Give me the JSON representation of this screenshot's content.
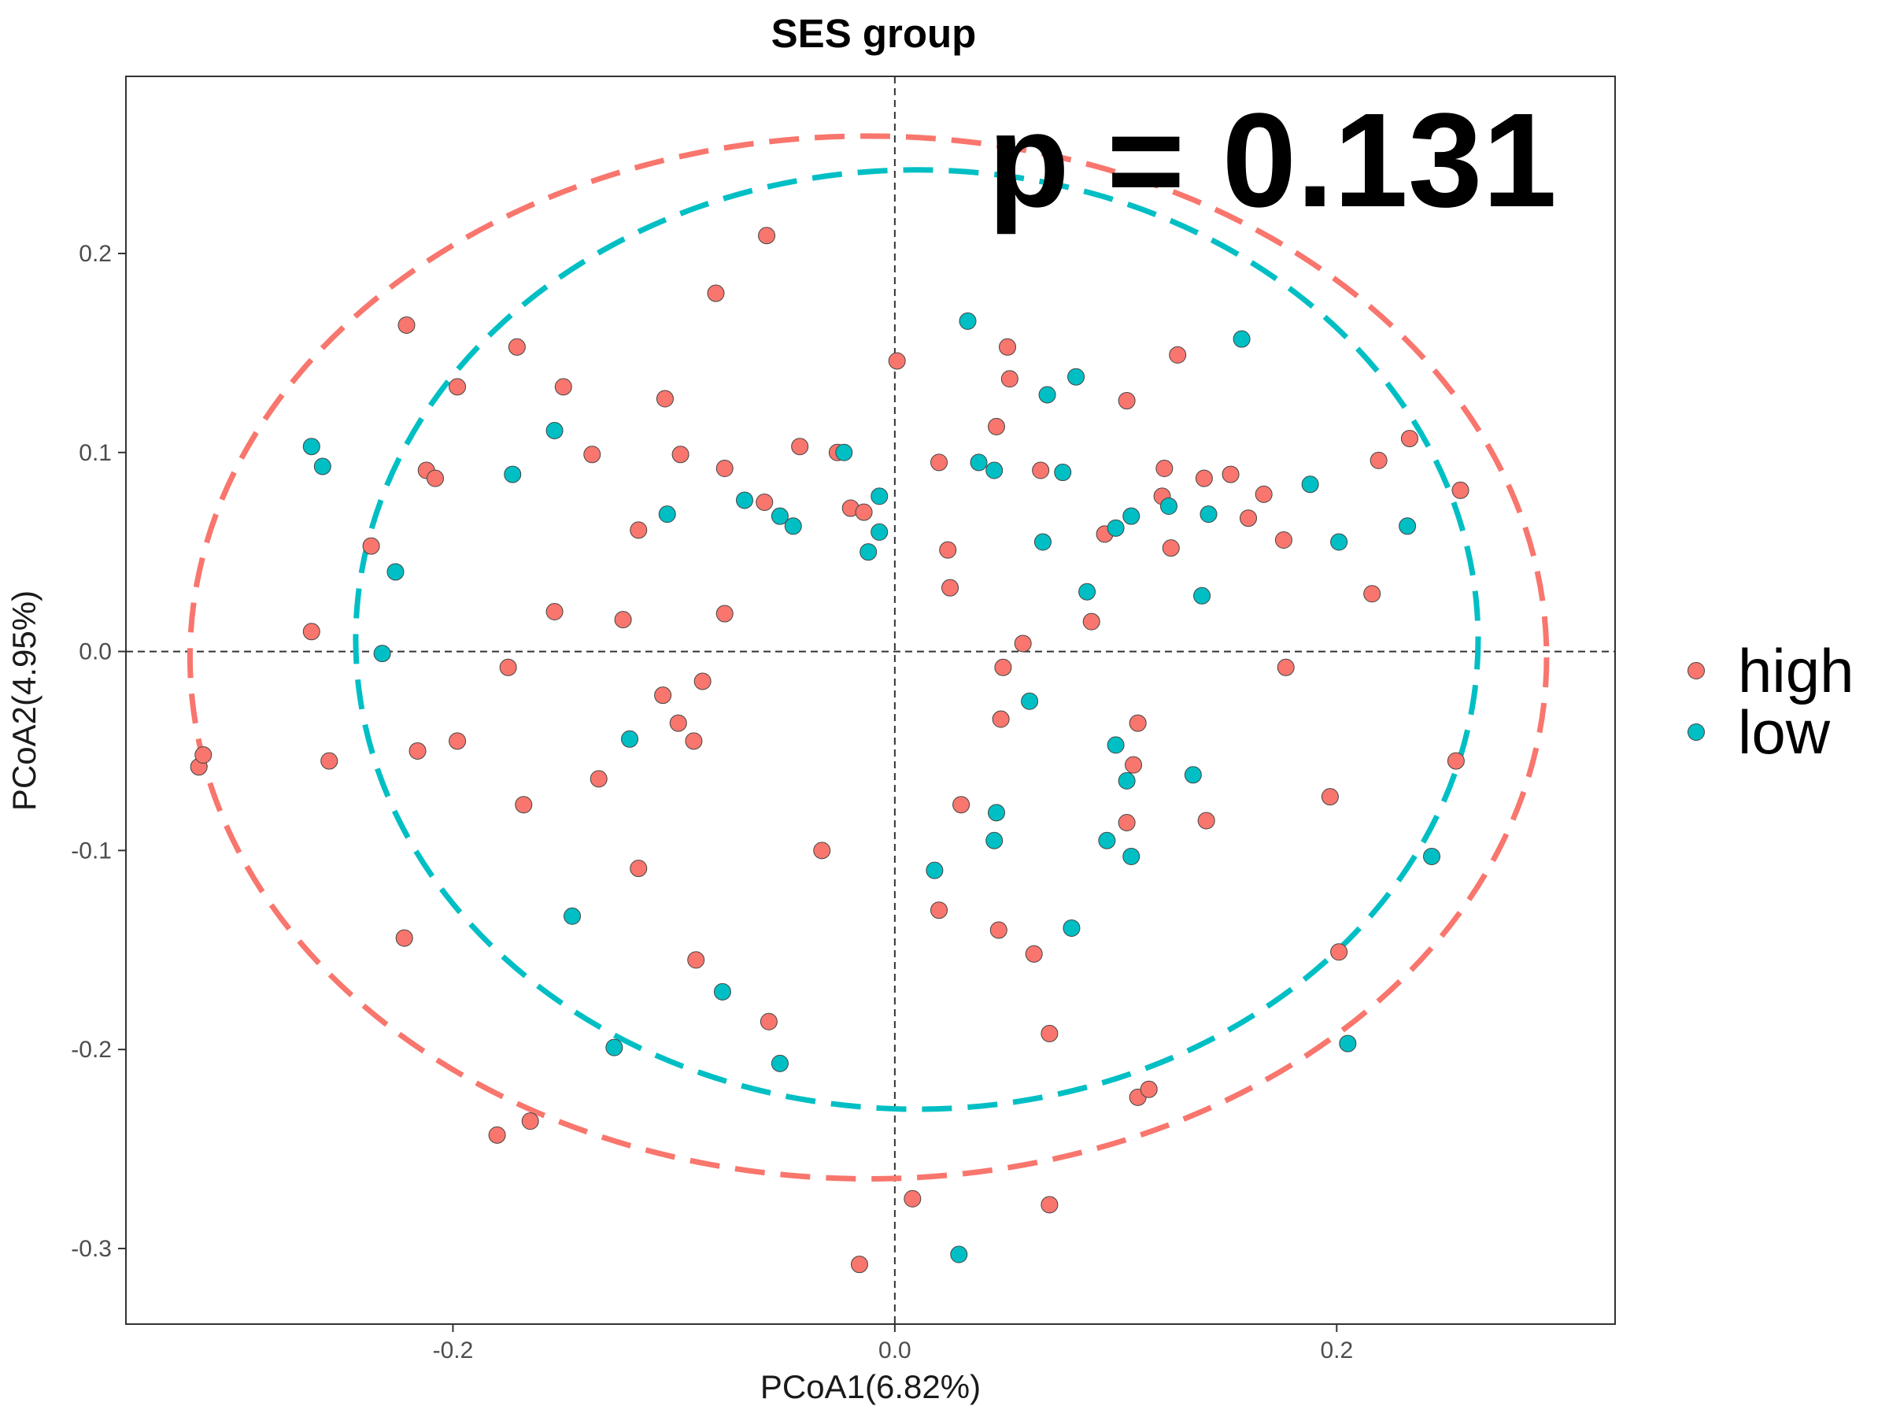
{
  "chart_data": {
    "type": "scatter",
    "title": "SES group",
    "xlabel": "PCoA1(6.82%)",
    "ylabel": "PCoA2(4.95%)",
    "xlim": [
      -0.348,
      0.326
    ],
    "ylim": [
      -0.338,
      0.289
    ],
    "xticks": [
      -0.2,
      0.0,
      0.2
    ],
    "xtick_labels": [
      "-0.2",
      "0.0",
      "0.2"
    ],
    "yticks": [
      -0.3,
      -0.2,
      -0.1,
      0.0,
      0.1,
      0.2
    ],
    "ytick_labels": [
      "-0.3",
      "-0.2",
      "-0.1",
      "0.0",
      "0.1",
      "0.2"
    ],
    "grid": false,
    "reference_lines": {
      "x": 0,
      "y": 0,
      "style": "dashed"
    },
    "annotation": "p = 0.131",
    "legend": {
      "position": "right"
    },
    "series": [
      {
        "name": "high",
        "color": "#F8766D",
        "ellipse": {
          "cx": -0.012,
          "cy": -0.003,
          "rx": 0.307,
          "ry": 0.262
        },
        "points": [
          [
            -0.315,
            -0.058
          ],
          [
            -0.313,
            -0.052
          ],
          [
            -0.264,
            0.01
          ],
          [
            -0.256,
            -0.055
          ],
          [
            -0.237,
            0.053
          ],
          [
            -0.221,
            0.164
          ],
          [
            -0.216,
            -0.05
          ],
          [
            -0.212,
            0.091
          ],
          [
            -0.208,
            0.087
          ],
          [
            -0.198,
            0.133
          ],
          [
            -0.198,
            -0.045
          ],
          [
            -0.222,
            -0.144
          ],
          [
            -0.175,
            -0.008
          ],
          [
            -0.171,
            0.153
          ],
          [
            -0.168,
            -0.077
          ],
          [
            -0.18,
            -0.243
          ],
          [
            -0.165,
            -0.236
          ],
          [
            -0.154,
            0.02
          ],
          [
            -0.15,
            0.133
          ],
          [
            -0.137,
            0.099
          ],
          [
            -0.134,
            -0.064
          ],
          [
            -0.123,
            0.016
          ],
          [
            -0.116,
            0.061
          ],
          [
            -0.116,
            -0.109
          ],
          [
            -0.104,
            0.127
          ],
          [
            -0.105,
            -0.022
          ],
          [
            -0.098,
            -0.036
          ],
          [
            -0.097,
            0.099
          ],
          [
            -0.091,
            -0.045
          ],
          [
            -0.09,
            -0.155
          ],
          [
            -0.087,
            -0.015
          ],
          [
            -0.081,
            0.18
          ],
          [
            -0.077,
            0.092
          ],
          [
            -0.077,
            0.019
          ],
          [
            -0.059,
            0.075
          ],
          [
            -0.058,
            0.209
          ],
          [
            -0.057,
            -0.186
          ],
          [
            -0.043,
            0.103
          ],
          [
            -0.033,
            -0.1
          ],
          [
            -0.026,
            0.1
          ],
          [
            -0.02,
            0.072
          ],
          [
            -0.014,
            0.07
          ],
          [
            -0.016,
            -0.308
          ],
          [
            0.001,
            0.146
          ],
          [
            0.008,
            -0.275
          ],
          [
            0.02,
            0.095
          ],
          [
            0.02,
            -0.13
          ],
          [
            0.024,
            0.051
          ],
          [
            0.025,
            0.032
          ],
          [
            0.03,
            -0.077
          ],
          [
            0.046,
            0.113
          ],
          [
            0.049,
            -0.008
          ],
          [
            0.048,
            -0.034
          ],
          [
            0.047,
            -0.14
          ],
          [
            0.051,
            0.153
          ],
          [
            0.052,
            0.137
          ],
          [
            0.058,
            0.004
          ],
          [
            0.063,
            -0.152
          ],
          [
            0.066,
            0.091
          ],
          [
            0.07,
            -0.192
          ],
          [
            0.07,
            -0.278
          ],
          [
            0.089,
            0.015
          ],
          [
            0.095,
            0.059
          ],
          [
            0.105,
            0.126
          ],
          [
            0.105,
            -0.086
          ],
          [
            0.108,
            -0.057
          ],
          [
            0.11,
            -0.036
          ],
          [
            0.11,
            -0.224
          ],
          [
            0.115,
            -0.22
          ],
          [
            0.122,
            0.092
          ],
          [
            0.121,
            0.078
          ],
          [
            0.125,
            0.052
          ],
          [
            0.128,
            0.149
          ],
          [
            0.14,
            0.087
          ],
          [
            0.141,
            -0.085
          ],
          [
            0.152,
            0.089
          ],
          [
            0.16,
            0.067
          ],
          [
            0.167,
            0.079
          ],
          [
            0.176,
            0.056
          ],
          [
            0.177,
            -0.008
          ],
          [
            0.197,
            -0.073
          ],
          [
            0.201,
            -0.151
          ],
          [
            0.216,
            0.029
          ],
          [
            0.219,
            0.096
          ],
          [
            0.233,
            0.107
          ],
          [
            0.254,
            -0.055
          ],
          [
            0.256,
            0.081
          ]
        ]
      },
      {
        "name": "low",
        "color": "#00BFC4",
        "ellipse": {
          "cx": 0.01,
          "cy": 0.006,
          "rx": 0.254,
          "ry": 0.236
        },
        "points": [
          [
            -0.264,
            0.103
          ],
          [
            -0.259,
            0.093
          ],
          [
            -0.226,
            0.04
          ],
          [
            -0.232,
            -0.001
          ],
          [
            -0.173,
            0.089
          ],
          [
            -0.154,
            0.111
          ],
          [
            -0.146,
            -0.133
          ],
          [
            -0.12,
            -0.044
          ],
          [
            -0.127,
            -0.199
          ],
          [
            -0.103,
            0.069
          ],
          [
            -0.078,
            -0.171
          ],
          [
            -0.068,
            0.076
          ],
          [
            -0.052,
            0.068
          ],
          [
            -0.046,
            0.063
          ],
          [
            -0.052,
            -0.207
          ],
          [
            -0.023,
            0.1
          ],
          [
            -0.012,
            0.05
          ],
          [
            -0.007,
            0.078
          ],
          [
            -0.007,
            0.06
          ],
          [
            0.033,
            0.166
          ],
          [
            0.038,
            0.095
          ],
          [
            0.045,
            0.091
          ],
          [
            0.046,
            -0.081
          ],
          [
            0.045,
            -0.095
          ],
          [
            0.018,
            -0.11
          ],
          [
            0.029,
            -0.303
          ],
          [
            0.061,
            -0.025
          ],
          [
            0.067,
            0.055
          ],
          [
            0.069,
            0.129
          ],
          [
            0.076,
            0.09
          ],
          [
            0.082,
            0.138
          ],
          [
            0.08,
            -0.139
          ],
          [
            0.087,
            0.03
          ],
          [
            0.096,
            -0.095
          ],
          [
            0.1,
            -0.047
          ],
          [
            0.1,
            0.062
          ],
          [
            0.105,
            -0.065
          ],
          [
            0.107,
            0.068
          ],
          [
            0.107,
            -0.103
          ],
          [
            0.124,
            0.073
          ],
          [
            0.135,
            -0.062
          ],
          [
            0.139,
            0.028
          ],
          [
            0.142,
            0.069
          ],
          [
            0.157,
            0.157
          ],
          [
            0.188,
            0.084
          ],
          [
            0.201,
            0.055
          ],
          [
            0.205,
            -0.197
          ],
          [
            0.232,
            0.063
          ],
          [
            0.243,
            -0.103
          ]
        ]
      }
    ]
  }
}
